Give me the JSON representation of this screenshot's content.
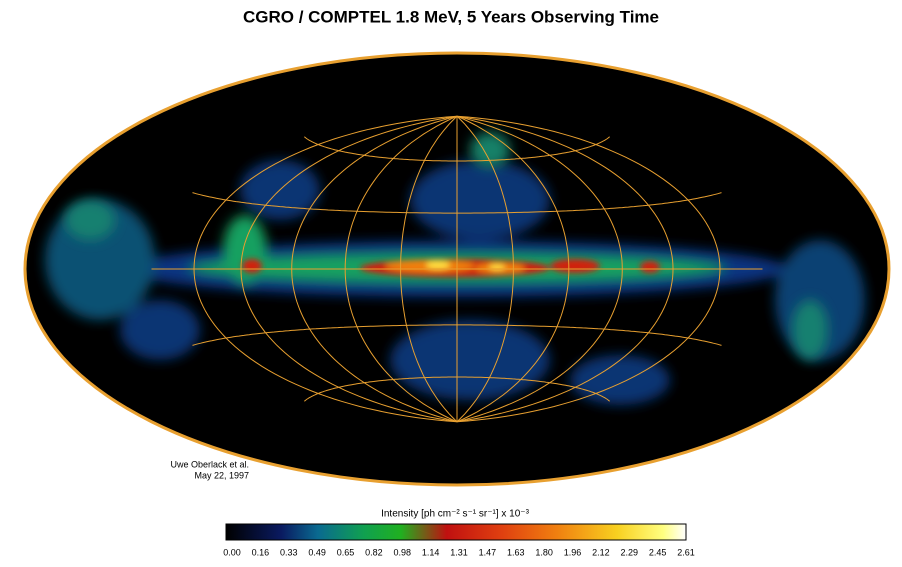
{
  "header": {
    "title": "CGRO / COMPTEL 1.8 MeV, 5 Years Observing Time"
  },
  "credit": {
    "author": "Uwe Oberlack et al.",
    "date": "May 22, 1997"
  },
  "colorbar": {
    "label": "Intensity [ph cm⁻² s⁻¹ sr⁻¹]  x 10⁻³",
    "ticks": [
      "0.00",
      "0.16",
      "0.33",
      "0.49",
      "0.65",
      "0.82",
      "0.98",
      "1.14",
      "1.31",
      "1.47",
      "1.63",
      "1.80",
      "1.96",
      "2.12",
      "2.29",
      "2.45",
      "2.61"
    ]
  }
}
